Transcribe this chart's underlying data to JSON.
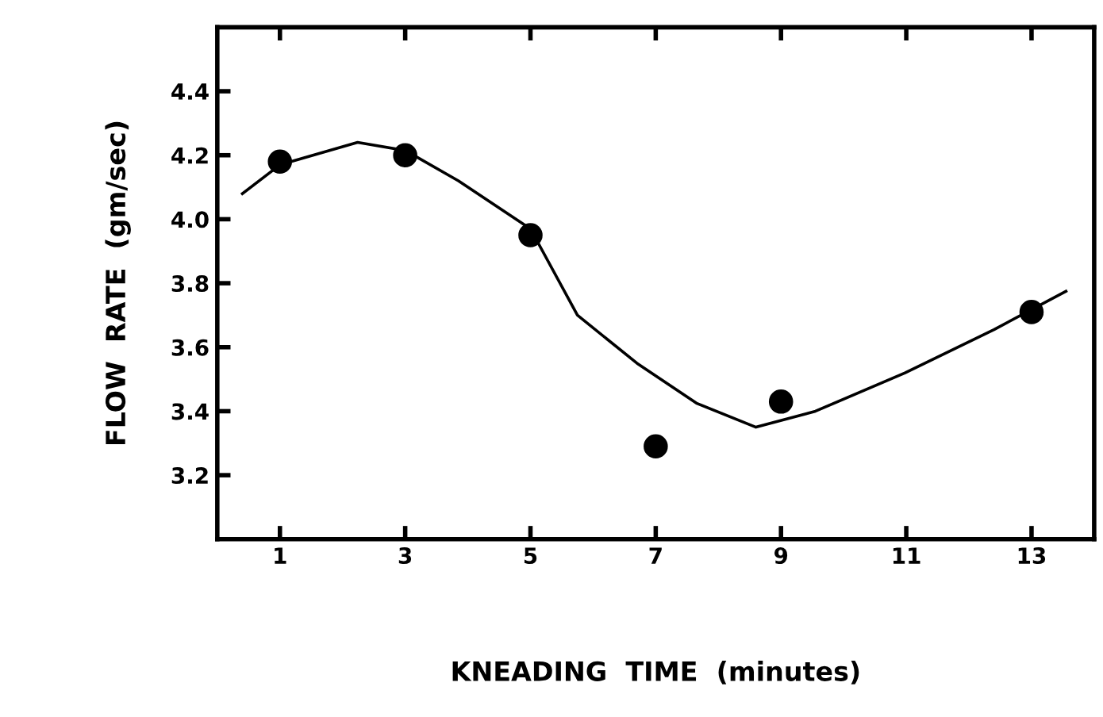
{
  "chart_data": {
    "type": "scatter",
    "xlabel": "KNEADING  TIME  (minutes)",
    "ylabel": "FLOW  RATE  (gm/sec)",
    "series": [
      {
        "color": "#000000",
        "marker": "circle",
        "x": [
          1,
          3,
          5,
          7,
          9,
          13
        ],
        "values": [
          4.18,
          4.2,
          3.95,
          3.29,
          3.43,
          3.71
        ]
      },
      {
        "type": "line",
        "color": "#000000",
        "marker": "none",
        "line_style": "solid",
        "x": [
          0.4,
          1,
          2.24,
          3,
          3.85,
          5,
          5.75,
          6.7,
          7.65,
          8.6,
          9.55,
          10.98,
          12.4,
          13.55
        ],
        "values": [
          4.08,
          4.17,
          4.24,
          4.215,
          4.12,
          3.97,
          3.7,
          3.55,
          3.425,
          3.35,
          3.4,
          3.52,
          3.655,
          3.775
        ]
      }
    ],
    "xlim": [
      0,
      14
    ],
    "ylim": [
      3.0,
      4.6
    ],
    "xticks": [
      1,
      3,
      5,
      7,
      9,
      11,
      13
    ],
    "yticks": [
      3.2,
      3.4,
      3.6,
      3.8,
      {
        "value": 4.0,
        "label": "4.0"
      },
      4.2,
      4.4
    ],
    "grid": false
  }
}
